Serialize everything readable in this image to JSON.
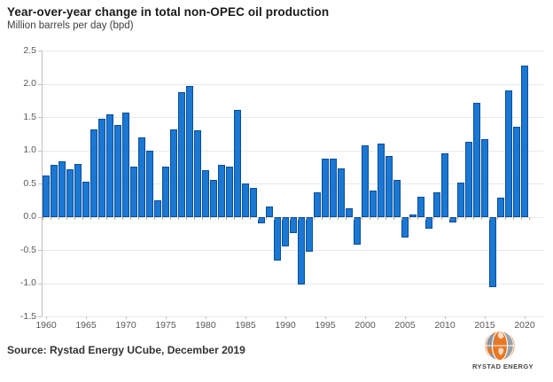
{
  "header": {
    "title": "Year-over-year change in total non-OPEC oil production",
    "subtitle": "Million barrels per day (bpd)"
  },
  "source": {
    "label": "Source: Rystad Energy UCube, December 2019"
  },
  "logo": {
    "brand": "RYSTAD ENERGY"
  },
  "colors": {
    "bar_fill": "#1a77d4",
    "bar_border": "#0d4d94",
    "gridline": "#e8e8e8",
    "axis_line": "#c0c0c0",
    "category_tick": "#cfa77f",
    "axis_label": "#595959",
    "logo_orange": "#e87722",
    "logo_gray": "#9aa0a6"
  },
  "chart_data": {
    "type": "bar",
    "title": "Year-over-year change in total non-OPEC oil production",
    "subtitle": "Million barrels per day (bpd)",
    "xlabel": "",
    "ylabel": "Million barrels per day (bpd)",
    "grid": true,
    "legend": false,
    "ylim": [
      -1.5,
      2.5
    ],
    "yticks": [
      2.5,
      2.0,
      1.5,
      1.0,
      0.5,
      0.0,
      -0.5,
      -1.0,
      -1.5
    ],
    "ytick_labels": [
      "2.5",
      "2.0",
      "1.5",
      "1.0",
      "0.5",
      "0.0",
      "-0.5",
      "-1.0",
      "-1.5"
    ],
    "xticks": [
      1960,
      1965,
      1970,
      1975,
      1980,
      1985,
      1990,
      1995,
      2000,
      2005,
      2010,
      2015,
      2020
    ],
    "years": [
      1960,
      1961,
      1962,
      1963,
      1964,
      1965,
      1966,
      1967,
      1968,
      1969,
      1970,
      1971,
      1972,
      1973,
      1974,
      1975,
      1976,
      1977,
      1978,
      1979,
      1980,
      1981,
      1982,
      1983,
      1984,
      1985,
      1986,
      1987,
      1988,
      1989,
      1990,
      1991,
      1992,
      1993,
      1994,
      1995,
      1996,
      1997,
      1998,
      1999,
      2000,
      2001,
      2002,
      2003,
      2004,
      2005,
      2006,
      2007,
      2008,
      2009,
      2010,
      2011,
      2012,
      2013,
      2014,
      2015,
      2016,
      2017,
      2018,
      2019,
      2020
    ],
    "values": [
      0.62,
      0.78,
      0.83,
      0.72,
      0.8,
      0.53,
      1.32,
      1.48,
      1.54,
      1.38,
      1.57,
      0.76,
      1.2,
      1.0,
      0.25,
      0.76,
      1.32,
      1.88,
      1.97,
      1.3,
      0.7,
      0.56,
      0.78,
      0.75,
      1.61,
      0.5,
      0.43,
      -0.1,
      0.15,
      -0.66,
      -0.45,
      -0.25,
      -1.02,
      -0.52,
      0.37,
      0.87,
      0.87,
      0.73,
      0.13,
      -0.42,
      1.07,
      0.39,
      1.1,
      0.92,
      0.55,
      -0.31,
      0.03,
      0.3,
      -0.18,
      0.37,
      0.96,
      -0.08,
      0.52,
      1.13,
      1.72,
      1.17,
      -1.06,
      0.29,
      1.9,
      1.36,
      2.27
    ]
  }
}
